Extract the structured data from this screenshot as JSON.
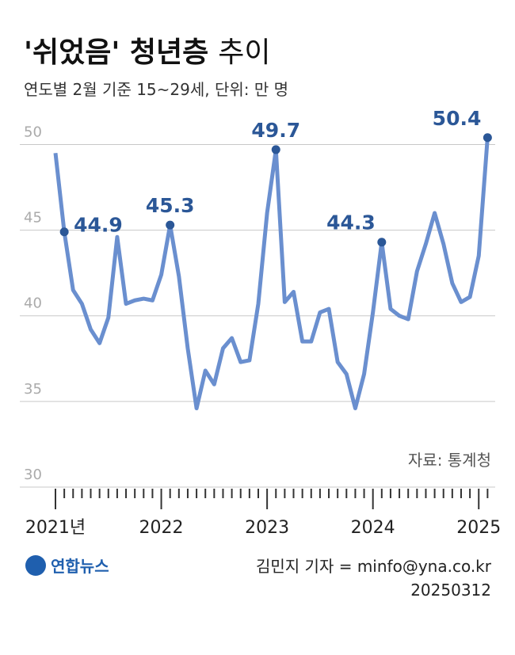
{
  "chart_data": {
    "type": "line",
    "title": "'쉬었음' 청년층",
    "title_light": "추이",
    "subtitle": "연도별 2월 기준 15~29세, 단위: 만 명",
    "source": "자료: 통계청",
    "credit": "김민지 기자 = minfo@yna.co.kr",
    "date": "20250312",
    "logo": "연합뉴스",
    "categories": [
      "2021년",
      null,
      null,
      null,
      null,
      null,
      null,
      null,
      null,
      null,
      null,
      null,
      "2022",
      null,
      null,
      null,
      null,
      null,
      null,
      null,
      null,
      null,
      null,
      null,
      "2023",
      null,
      null,
      null,
      null,
      null,
      null,
      null,
      null,
      null,
      null,
      null,
      "2024",
      null,
      null,
      null,
      null,
      null,
      null,
      null,
      null,
      null,
      null,
      null,
      "2025",
      null
    ],
    "series": [
      {
        "color": "#6a8fcf",
        "values": [
          49.5,
          44.9,
          41.5,
          40.7,
          39.2,
          38.4,
          39.9,
          44.6,
          40.7,
          40.9,
          41.0,
          40.9,
          42.4,
          45.3,
          42.3,
          38.1,
          34.6,
          36.8,
          36.0,
          38.1,
          38.7,
          37.3,
          37.4,
          40.7,
          46.0,
          49.7,
          40.8,
          41.4,
          38.5,
          38.5,
          40.2,
          40.4,
          37.3,
          36.6,
          34.6,
          36.6,
          40.2,
          44.3,
          40.4,
          40.0,
          39.8,
          42.6,
          44.2,
          46.0,
          44.2,
          41.9,
          40.8,
          41.1,
          43.5,
          50.4
        ]
      }
    ],
    "marked": [
      1,
      13,
      25,
      37,
      49
    ],
    "marker_color": "#2b5797",
    "ylim": [
      30,
      51.5
    ],
    "yticks": [
      30,
      35,
      40,
      45,
      50
    ],
    "grid": true
  }
}
